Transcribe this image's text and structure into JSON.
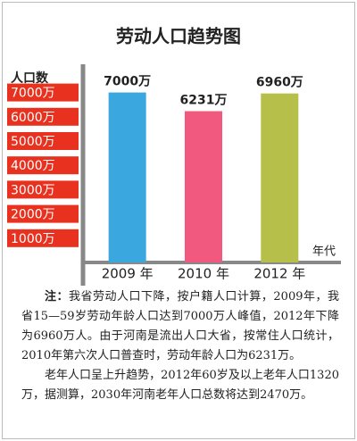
{
  "chart_data": {
    "type": "bar",
    "title": "劳动人口趋势图",
    "y_label": "人口数",
    "x_label": "年代",
    "categories": [
      "2009 年",
      "2010 年",
      "2012 年"
    ],
    "values": [
      7000,
      6231,
      6960
    ],
    "value_labels": [
      "7000万",
      "6231万",
      "6960万"
    ],
    "colors": [
      "#3aa8de",
      "#f15a7e",
      "#b6bf4a"
    ],
    "ylim": [
      0,
      7500
    ],
    "yticks": [
      {
        "value": 1000,
        "label": "1000万"
      },
      {
        "value": 2000,
        "label": "2000万"
      },
      {
        "value": 3000,
        "label": "3000万"
      },
      {
        "value": 4000,
        "label": "4000万"
      },
      {
        "value": 5000,
        "label": "5000万"
      },
      {
        "value": 6000,
        "label": "6000万"
      },
      {
        "value": 7000,
        "label": "7000万"
      }
    ],
    "tick_color": "#e8321f"
  },
  "note": {
    "label": "注：",
    "paragraphs": [
      "我省劳动人口下降，按户籍人口计算，2009年，我省15—59岁劳动年龄人口达到7000万人峰值，2012年下降为6960万人。由于河南是流出人口大省，按常住人口统计，2010年第六次人口普查时，劳动年龄人口为6231万。",
      "老年人口呈上升趋势，2012年60岁及以上老年人口1320万，据测算，2030年河南老年人口总数将达到2470万。"
    ]
  }
}
